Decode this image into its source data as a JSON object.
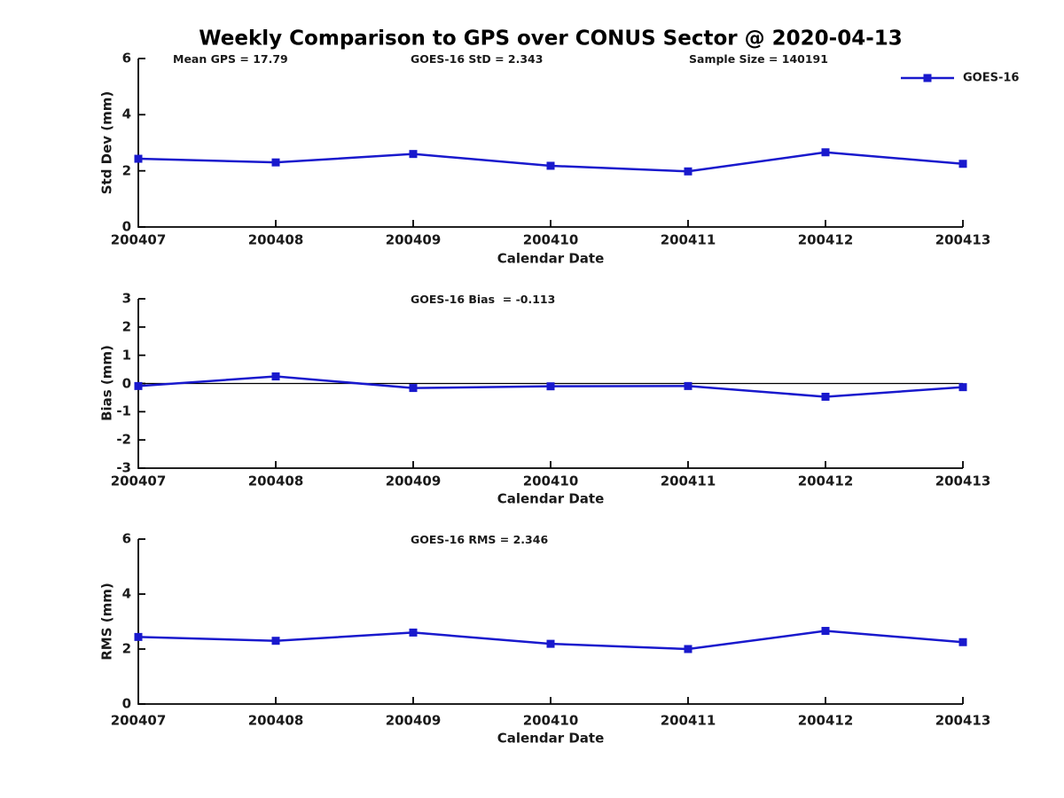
{
  "title": "Weekly Comparison to GPS over CONUS Sector @ 2020-04-13",
  "legend": {
    "label": "GOES-16"
  },
  "colors": {
    "line": "#1919CD",
    "axis": "#000000",
    "text": "#1A1A1A"
  },
  "chart_data": [
    {
      "type": "line",
      "name": "std-dev-panel",
      "title_annotations": [
        "Mean GPS = 17.79",
        "GOES-16 StD = 2.343",
        "Sample Size = 140191"
      ],
      "xlabel": "Calendar Date",
      "ylabel": "Std Dev (mm)",
      "ylim": [
        0,
        6
      ],
      "yticks": [
        0,
        2,
        4,
        6
      ],
      "grid": false,
      "legend_position": "top-right",
      "categories": [
        "200407",
        "200408",
        "200409",
        "200410",
        "200411",
        "200412",
        "200413"
      ],
      "series": [
        {
          "name": "GOES-16",
          "values": [
            2.43,
            2.3,
            2.6,
            2.18,
            1.98,
            2.66,
            2.25
          ]
        }
      ]
    },
    {
      "type": "line",
      "name": "bias-panel",
      "title_annotations": [
        "GOES-16 Bias  = -0.113"
      ],
      "xlabel": "Calendar Date",
      "ylabel": "Bias (mm)",
      "ylim": [
        -3,
        3
      ],
      "yticks": [
        -3,
        -2,
        -1,
        0,
        1,
        2,
        3
      ],
      "zero_line": true,
      "grid": false,
      "categories": [
        "200407",
        "200408",
        "200409",
        "200410",
        "200411",
        "200412",
        "200413"
      ],
      "series": [
        {
          "name": "GOES-16",
          "values": [
            -0.09,
            0.25,
            -0.16,
            -0.1,
            -0.09,
            -0.47,
            -0.13
          ]
        }
      ]
    },
    {
      "type": "line",
      "name": "rms-panel",
      "title_annotations": [
        "GOES-16 RMS = 2.346"
      ],
      "xlabel": "Calendar Date",
      "ylabel": "RMS (mm)",
      "ylim": [
        0,
        6
      ],
      "yticks": [
        0,
        2,
        4,
        6
      ],
      "grid": false,
      "categories": [
        "200407",
        "200408",
        "200409",
        "200410",
        "200411",
        "200412",
        "200413"
      ],
      "series": [
        {
          "name": "GOES-16",
          "values": [
            2.44,
            2.3,
            2.6,
            2.19,
            2.0,
            2.66,
            2.25
          ]
        }
      ]
    }
  ]
}
